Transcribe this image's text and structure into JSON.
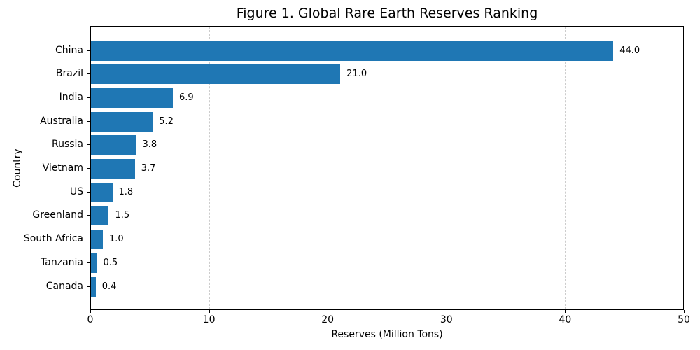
{
  "chart_data": {
    "type": "bar",
    "orientation": "horizontal",
    "title": "Figure 1. Global Rare Earth Reserves Ranking",
    "xlabel": "Reserves (Million Tons)",
    "ylabel": "Country",
    "categories": [
      "China",
      "Brazil",
      "India",
      "Australia",
      "Russia",
      "Vietnam",
      "US",
      "Greenland",
      "South Africa",
      "Tanzania",
      "Canada"
    ],
    "values": [
      44.0,
      21.0,
      6.9,
      5.2,
      3.8,
      3.7,
      1.8,
      1.5,
      1.0,
      0.5,
      0.4
    ],
    "value_labels": [
      "44.0",
      "21.0",
      "6.9",
      "5.2",
      "3.8",
      "3.7",
      "1.8",
      "1.5",
      "1.0",
      "0.5",
      "0.4"
    ],
    "xlim": [
      0,
      50
    ],
    "xticks": [
      0,
      10,
      20,
      30,
      40,
      50
    ],
    "xtick_labels": [
      "0",
      "10",
      "20",
      "30",
      "40",
      "50"
    ],
    "bar_color": "#1f77b4",
    "grid": {
      "axis": "x",
      "style": "dashed",
      "color": "#cccccc"
    },
    "background": "#ffffff",
    "legend": "none"
  }
}
